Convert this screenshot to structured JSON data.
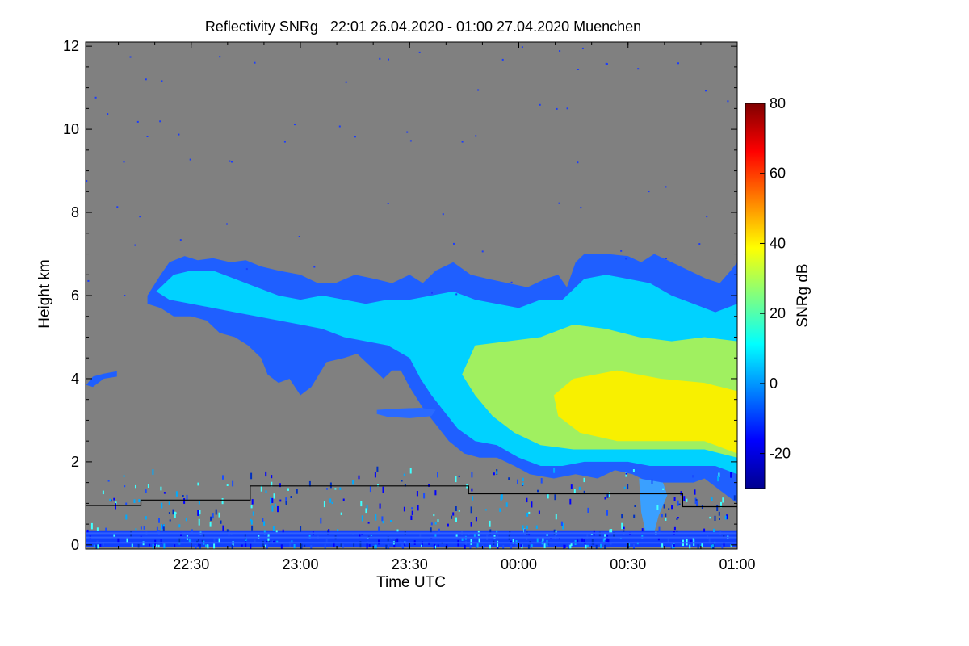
{
  "chart_data": {
    "type": "heatmap",
    "title": "Reflectivity SNRg   22:01 26.04.2020 - 01:00 27.04.2020 Muenchen",
    "xlabel": "Time UTC",
    "ylabel": "Height km",
    "xlim": [
      22.0167,
      25.0
    ],
    "ylim": [
      -0.1,
      12.1
    ],
    "x_ticks": [
      {
        "value": 22.5,
        "label": "22:30"
      },
      {
        "value": 23.0,
        "label": "23:00"
      },
      {
        "value": 23.5,
        "label": "23:30"
      },
      {
        "value": 24.0,
        "label": "00:00"
      },
      {
        "value": 24.5,
        "label": "00:30"
      },
      {
        "value": 25.0,
        "label": "01:00"
      }
    ],
    "y_ticks": [
      {
        "value": 0,
        "label": "0"
      },
      {
        "value": 2,
        "label": "2"
      },
      {
        "value": 4,
        "label": "4"
      },
      {
        "value": 6,
        "label": "6"
      },
      {
        "value": 8,
        "label": "8"
      },
      {
        "value": 10,
        "label": "10"
      },
      {
        "value": 12,
        "label": "12"
      }
    ],
    "colorbar": {
      "label": "SNRg dB",
      "range": [
        -30,
        80
      ],
      "ticks": [
        {
          "value": -20,
          "label": "-20"
        },
        {
          "value": 0,
          "label": "0"
        },
        {
          "value": 20,
          "label": "20"
        },
        {
          "value": 40,
          "label": "40"
        },
        {
          "value": 60,
          "label": "60"
        },
        {
          "value": 80,
          "label": "80"
        }
      ],
      "colormap": [
        "#00008f",
        "#0000ff",
        "#0080ff",
        "#00ffff",
        "#80ff80",
        "#ffff00",
        "#ff8000",
        "#ff0000",
        "#800000"
      ]
    },
    "background_color": "#808080",
    "echo_regions": [
      {
        "name": "main-cloud",
        "fill": "#1f5fff",
        "outline": [
          [
            22.3,
            6.0
          ],
          [
            22.36,
            6.5
          ],
          [
            22.4,
            6.8
          ],
          [
            22.47,
            6.95
          ],
          [
            22.53,
            6.85
          ],
          [
            22.6,
            6.9
          ],
          [
            22.68,
            6.8
          ],
          [
            22.75,
            6.85
          ],
          [
            22.82,
            6.7
          ],
          [
            22.9,
            6.6
          ],
          [
            23.0,
            6.5
          ],
          [
            23.08,
            6.3
          ],
          [
            23.16,
            6.3
          ],
          [
            23.25,
            6.5
          ],
          [
            23.34,
            6.4
          ],
          [
            23.42,
            6.3
          ],
          [
            23.5,
            6.5
          ],
          [
            23.56,
            6.3
          ],
          [
            23.62,
            6.6
          ],
          [
            23.7,
            6.8
          ],
          [
            23.78,
            6.5
          ],
          [
            23.86,
            6.4
          ],
          [
            23.95,
            6.3
          ],
          [
            24.04,
            6.2
          ],
          [
            24.12,
            6.4
          ],
          [
            24.18,
            6.5
          ],
          [
            24.22,
            6.2
          ],
          [
            24.26,
            6.8
          ],
          [
            24.3,
            7.0
          ],
          [
            24.4,
            7.0
          ],
          [
            24.5,
            6.95
          ],
          [
            24.56,
            6.8
          ],
          [
            24.62,
            7.0
          ],
          [
            24.7,
            6.8
          ],
          [
            24.78,
            6.6
          ],
          [
            24.86,
            6.4
          ],
          [
            24.92,
            6.3
          ],
          [
            24.97,
            6.6
          ],
          [
            25.0,
            6.8
          ],
          [
            25.0,
            1.0
          ],
          [
            24.95,
            1.2
          ],
          [
            24.9,
            1.4
          ],
          [
            24.85,
            1.6
          ],
          [
            24.8,
            1.5
          ],
          [
            24.7,
            1.5
          ],
          [
            24.6,
            1.5
          ],
          [
            24.52,
            1.7
          ],
          [
            24.44,
            1.8
          ],
          [
            24.36,
            1.6
          ],
          [
            24.26,
            1.7
          ],
          [
            24.16,
            1.6
          ],
          [
            24.05,
            1.7
          ],
          [
            23.98,
            1.9
          ],
          [
            23.9,
            2.1
          ],
          [
            23.82,
            2.1
          ],
          [
            23.75,
            2.2
          ],
          [
            23.68,
            2.5
          ],
          [
            23.62,
            2.9
          ],
          [
            23.56,
            3.3
          ],
          [
            23.5,
            3.8
          ],
          [
            23.46,
            4.2
          ],
          [
            23.42,
            4.2
          ],
          [
            23.38,
            4.0
          ],
          [
            23.32,
            4.3
          ],
          [
            23.26,
            4.6
          ],
          [
            23.2,
            4.5
          ],
          [
            23.12,
            4.4
          ],
          [
            23.05,
            3.8
          ],
          [
            23.0,
            3.6
          ],
          [
            22.95,
            4.0
          ],
          [
            22.9,
            3.9
          ],
          [
            22.85,
            4.1
          ],
          [
            22.82,
            4.5
          ],
          [
            22.76,
            4.8
          ],
          [
            22.7,
            5.0
          ],
          [
            22.63,
            5.1
          ],
          [
            22.57,
            5.4
          ],
          [
            22.5,
            5.5
          ],
          [
            22.42,
            5.5
          ],
          [
            22.36,
            5.7
          ],
          [
            22.3,
            5.8
          ]
        ]
      },
      {
        "name": "inner-cloud",
        "fill": "#00d2ff",
        "outline": [
          [
            22.34,
            6.1
          ],
          [
            22.42,
            6.5
          ],
          [
            22.5,
            6.6
          ],
          [
            22.6,
            6.6
          ],
          [
            22.7,
            6.4
          ],
          [
            22.8,
            6.2
          ],
          [
            22.9,
            6.0
          ],
          [
            23.0,
            5.9
          ],
          [
            23.1,
            6.0
          ],
          [
            23.2,
            5.9
          ],
          [
            23.3,
            5.8
          ],
          [
            23.4,
            5.9
          ],
          [
            23.5,
            5.9
          ],
          [
            23.6,
            6.0
          ],
          [
            23.7,
            6.1
          ],
          [
            23.8,
            5.9
          ],
          [
            23.9,
            5.8
          ],
          [
            24.0,
            5.7
          ],
          [
            24.1,
            5.9
          ],
          [
            24.2,
            5.9
          ],
          [
            24.3,
            6.4
          ],
          [
            24.4,
            6.5
          ],
          [
            24.5,
            6.4
          ],
          [
            24.6,
            6.3
          ],
          [
            24.7,
            6.0
          ],
          [
            24.8,
            5.8
          ],
          [
            24.9,
            5.6
          ],
          [
            25.0,
            5.8
          ],
          [
            25.0,
            1.7
          ],
          [
            24.9,
            1.9
          ],
          [
            24.8,
            1.9
          ],
          [
            24.7,
            1.9
          ],
          [
            24.6,
            1.9
          ],
          [
            24.5,
            2.0
          ],
          [
            24.4,
            2.0
          ],
          [
            24.3,
            2.0
          ],
          [
            24.2,
            1.9
          ],
          [
            24.1,
            1.9
          ],
          [
            24.0,
            2.1
          ],
          [
            23.9,
            2.4
          ],
          [
            23.8,
            2.5
          ],
          [
            23.72,
            2.8
          ],
          [
            23.66,
            3.2
          ],
          [
            23.6,
            3.6
          ],
          [
            23.55,
            4.0
          ],
          [
            23.5,
            4.5
          ],
          [
            23.4,
            4.8
          ],
          [
            23.3,
            4.9
          ],
          [
            23.2,
            5.0
          ],
          [
            23.1,
            5.2
          ],
          [
            23.0,
            5.3
          ],
          [
            22.9,
            5.4
          ],
          [
            22.8,
            5.5
          ],
          [
            22.7,
            5.6
          ],
          [
            22.6,
            5.7
          ],
          [
            22.5,
            5.8
          ],
          [
            22.4,
            5.9
          ]
        ]
      },
      {
        "name": "core-echo",
        "fill": "#a0f060",
        "outline": [
          [
            23.8,
            4.8
          ],
          [
            23.95,
            4.9
          ],
          [
            24.1,
            5.0
          ],
          [
            24.25,
            5.3
          ],
          [
            24.4,
            5.2
          ],
          [
            24.55,
            5.0
          ],
          [
            24.7,
            4.9
          ],
          [
            24.85,
            5.0
          ],
          [
            25.0,
            4.9
          ],
          [
            25.0,
            2.1
          ],
          [
            24.85,
            2.3
          ],
          [
            24.7,
            2.3
          ],
          [
            24.55,
            2.3
          ],
          [
            24.4,
            2.3
          ],
          [
            24.25,
            2.3
          ],
          [
            24.1,
            2.4
          ],
          [
            23.98,
            2.7
          ],
          [
            23.88,
            3.1
          ],
          [
            23.8,
            3.6
          ],
          [
            23.74,
            4.1
          ]
        ]
      },
      {
        "name": "yellow-core",
        "fill": "#f8f000",
        "outline": [
          [
            24.25,
            4.0
          ],
          [
            24.45,
            4.2
          ],
          [
            24.65,
            4.0
          ],
          [
            24.85,
            3.9
          ],
          [
            25.0,
            3.7
          ],
          [
            25.0,
            2.2
          ],
          [
            24.85,
            2.5
          ],
          [
            24.65,
            2.5
          ],
          [
            24.45,
            2.5
          ],
          [
            24.28,
            2.7
          ],
          [
            24.18,
            3.1
          ],
          [
            24.16,
            3.6
          ]
        ]
      },
      {
        "name": "left-streak",
        "fill": "#1f5fff",
        "outline": [
          [
            22.02,
            3.85
          ],
          [
            22.05,
            4.05
          ],
          [
            22.1,
            4.12
          ],
          [
            22.16,
            4.18
          ],
          [
            22.16,
            4.05
          ],
          [
            22.1,
            4.0
          ],
          [
            22.05,
            3.8
          ]
        ]
      },
      {
        "name": "mid-layer",
        "fill": "#2a6aff",
        "outline": [
          [
            23.35,
            3.25
          ],
          [
            23.45,
            3.28
          ],
          [
            23.55,
            3.3
          ],
          [
            23.62,
            3.25
          ],
          [
            23.6,
            3.1
          ],
          [
            23.5,
            3.05
          ],
          [
            23.4,
            3.08
          ],
          [
            23.35,
            3.15
          ]
        ]
      },
      {
        "name": "precip-shaft",
        "fill": "#3aa0ff",
        "outline": [
          [
            24.55,
            1.6
          ],
          [
            24.66,
            1.5
          ],
          [
            24.68,
            1.2
          ],
          [
            24.64,
            0.7
          ],
          [
            24.62,
            0.3
          ],
          [
            24.6,
            0.1
          ],
          [
            24.58,
            0.3
          ],
          [
            24.56,
            0.8
          ]
        ]
      },
      {
        "name": "ground-clutter",
        "fill": "#1040ff",
        "outline": [
          [
            22.02,
            0.35
          ],
          [
            25.0,
            0.35
          ],
          [
            25.0,
            -0.05
          ],
          [
            22.02,
            -0.05
          ]
        ]
      }
    ],
    "cloud_base_line": {
      "color": "#000000",
      "points": [
        [
          22.02,
          0.95
        ],
        [
          22.27,
          0.95
        ],
        [
          22.27,
          1.08
        ],
        [
          22.77,
          1.08
        ],
        [
          22.77,
          1.42
        ],
        [
          23.77,
          1.42
        ],
        [
          23.77,
          1.23
        ],
        [
          24.75,
          1.23
        ],
        [
          24.75,
          0.92
        ],
        [
          25.0,
          0.92
        ]
      ]
    }
  }
}
